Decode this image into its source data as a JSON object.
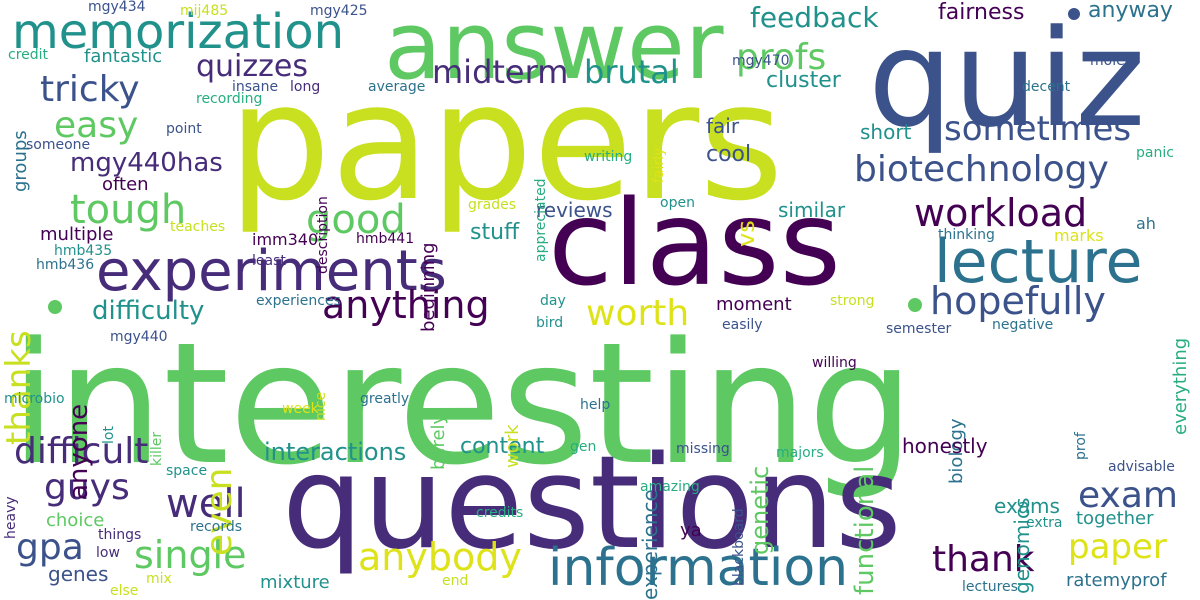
{
  "palette": {
    "lime": "#c8e020",
    "green": "#5ec962",
    "teal": "#21918c",
    "blue": "#3b528b",
    "purple": "#440154",
    "violet": "#472c7a",
    "cyan": "#2c728e",
    "sea": "#27ad81",
    "yellow": "#dde318"
  },
  "words": [
    "interesting",
    "papers",
    "questions",
    "quiz",
    "class",
    "answer",
    "experiments",
    "lecture",
    "memorization",
    "information",
    "hopefully",
    "anything",
    "workload",
    "biotechnology",
    "sometimes",
    "midterm",
    "brutal",
    "quizzes",
    "tricky",
    "tough",
    "good",
    "exam",
    "thank",
    "paper",
    "single",
    "anybody",
    "difficult",
    "guys",
    "well",
    "profs",
    "even",
    "worth",
    "easy",
    "thanks",
    "anyone",
    "mgy440has",
    "feedback",
    "fairness",
    "anyway",
    "difficulty",
    "content",
    "interactions",
    "gpa",
    "genes",
    "fantastic",
    "cluster",
    "vs",
    "cool",
    "fair",
    "stuff",
    "reviews",
    "similar",
    "short",
    "functional",
    "genetic",
    "genomics",
    "biology",
    "experience",
    "honestly",
    "exams",
    "together",
    "work",
    "barely",
    "ratemyprof",
    "mixture",
    "lectures",
    "moment",
    "everything",
    "multiple",
    "often",
    "groups",
    "choice",
    "marks",
    "ah",
    "writing",
    "appreciated",
    "fairly",
    "beginning",
    "description",
    "nice",
    "prof",
    "killer",
    "lot",
    "heavy",
    "blackboard",
    "imm340",
    "least",
    "hmb441",
    "hmb435",
    "hmb436",
    "mgy434",
    "mij485",
    "mgy425",
    "mgy470",
    "mgy440",
    "semester",
    "grades",
    "teaches",
    "extra",
    "end",
    "mix",
    "someone",
    "point",
    "long",
    "insane",
    "average",
    "recording",
    "credit",
    "molec",
    "decent",
    "panic",
    "open",
    "thinking",
    "experiences",
    "day",
    "strong",
    "easily",
    "bird",
    "negative",
    "willing",
    "greatly",
    "help",
    "week",
    "microbio",
    "space",
    "gen",
    "missing",
    "majors",
    "advisable",
    "amazing",
    "credits",
    "records",
    "things",
    "low",
    "else",
    "ya"
  ]
}
